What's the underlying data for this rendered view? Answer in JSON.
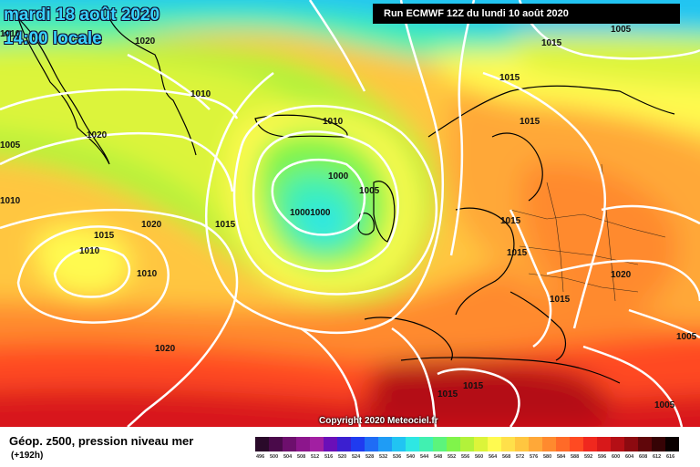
{
  "map": {
    "date_line1": "mardi 18 août 2020",
    "date_line2": "14:00 locale",
    "run_info": "Run ECMWF 12Z du lundi 10 août 2020",
    "copyright": "Copyright 2020 Meteociel.fr",
    "isobar_labels": [
      "1020",
      "1010",
      "1005",
      "1015",
      "1010",
      "1010",
      "1020",
      "1005",
      "1010",
      "1000",
      "1015",
      "1020",
      "1015",
      "1010",
      "1005",
      "1015",
      "1015",
      "10001000",
      "1015",
      "1020",
      "1015",
      "1015",
      "1010",
      "1020",
      "1015",
      "1015",
      "1005",
      "1005"
    ]
  },
  "legend": {
    "title": "Géop. z500, pression niveau mer",
    "subtitle": "(+192h)",
    "scale": [
      {
        "value": "496",
        "color": "#2a0a2a"
      },
      {
        "value": "500",
        "color": "#4a0a4a"
      },
      {
        "value": "504",
        "color": "#6d0f6d"
      },
      {
        "value": "508",
        "color": "#8c168c"
      },
      {
        "value": "512",
        "color": "#a21fa2"
      },
      {
        "value": "516",
        "color": "#6a0fb8"
      },
      {
        "value": "520",
        "color": "#3b1fd0"
      },
      {
        "value": "524",
        "color": "#1f3bf0"
      },
      {
        "value": "528",
        "color": "#1f6cf5"
      },
      {
        "value": "532",
        "color": "#1f9cf5"
      },
      {
        "value": "536",
        "color": "#21c4f2"
      },
      {
        "value": "540",
        "color": "#2ee7e3"
      },
      {
        "value": "544",
        "color": "#41f0b1"
      },
      {
        "value": "548",
        "color": "#5cf47c"
      },
      {
        "value": "552",
        "color": "#80f44a"
      },
      {
        "value": "556",
        "color": "#b2f23a"
      },
      {
        "value": "560",
        "color": "#dcf43a"
      },
      {
        "value": "564",
        "color": "#fffa50"
      },
      {
        "value": "568",
        "color": "#ffe04a"
      },
      {
        "value": "572",
        "color": "#ffc640"
      },
      {
        "value": "576",
        "color": "#ffa838"
      },
      {
        "value": "580",
        "color": "#ff8a2e"
      },
      {
        "value": "584",
        "color": "#ff6a28"
      },
      {
        "value": "588",
        "color": "#ff4a22"
      },
      {
        "value": "592",
        "color": "#f0281e"
      },
      {
        "value": "596",
        "color": "#d8181a"
      },
      {
        "value": "600",
        "color": "#b40f15"
      },
      {
        "value": "604",
        "color": "#8c0a10"
      },
      {
        "value": "608",
        "color": "#60060a"
      },
      {
        "value": "612",
        "color": "#360305"
      },
      {
        "value": "616",
        "color": "#0a0000"
      }
    ]
  }
}
